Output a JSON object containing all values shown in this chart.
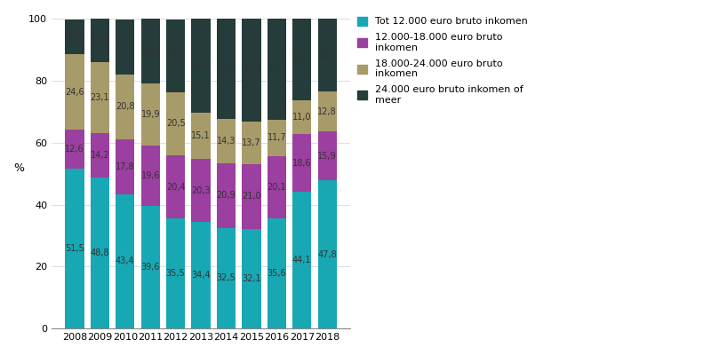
{
  "years": [
    2008,
    2009,
    2010,
    2011,
    2012,
    2013,
    2014,
    2015,
    2016,
    2017,
    2018
  ],
  "series": {
    "Tot 12.000 euro bruto inkomen": [
      51.5,
      48.8,
      43.4,
      39.6,
      35.5,
      34.4,
      32.5,
      32.1,
      35.6,
      44.1,
      47.8
    ],
    "12.000-18.000 euro bruto inkomen": [
      12.6,
      14.2,
      17.8,
      19.6,
      20.4,
      20.3,
      20.9,
      21.0,
      20.1,
      18.6,
      15.9
    ],
    "18.000-24.000 euro bruto inkomen": [
      24.6,
      23.1,
      20.8,
      19.9,
      20.5,
      15.1,
      14.3,
      13.7,
      11.7,
      11.0,
      12.8
    ],
    "24.000 euro bruto inkomen of meer": [
      11.2,
      13.9,
      17.9,
      20.9,
      23.5,
      30.2,
      32.3,
      33.3,
      32.6,
      26.3,
      23.5
    ]
  },
  "colors": {
    "Tot 12.000 euro bruto inkomen": "#18A8B4",
    "12.000-18.000 euro bruto inkomen": "#9B3FA0",
    "18.000-24.000 euro bruto inkomen": "#A89B6A",
    "24.000 euro bruto inkomen of meer": "#253C3A"
  },
  "ylabel": "%",
  "ylim": [
    0,
    100
  ],
  "yticks": [
    0,
    20,
    40,
    60,
    80,
    100
  ],
  "bar_width": 0.75,
  "legend_labels": [
    "Tot 12.000 euro bruto inkomen",
    "12.000-18.000 euro bruto\ninkomen",
    "18.000-24.000 euro bruto\ninkomen",
    "24.000 euro bruto inkomen of\nmeer"
  ],
  "annotation_fontsize": 7.0,
  "text_color": "#333333"
}
